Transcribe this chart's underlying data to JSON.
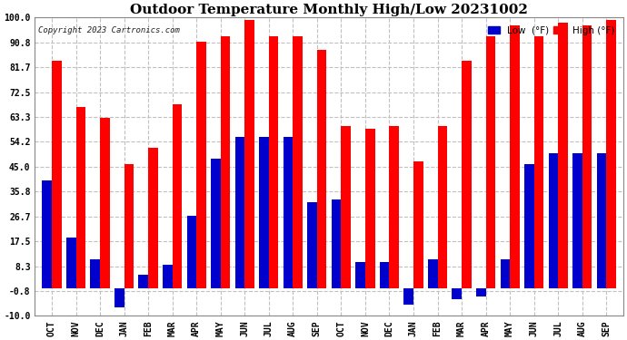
{
  "title": "Outdoor Temperature Monthly High/Low 20231002",
  "copyright": "Copyright 2023 Cartronics.com",
  "legend_low": "Low  (°F)",
  "legend_high": "High (°F)",
  "months": [
    "OCT",
    "NOV",
    "DEC",
    "JAN",
    "FEB",
    "MAR",
    "APR",
    "MAY",
    "JUN",
    "JUL",
    "AUG",
    "SEP",
    "OCT",
    "NOV",
    "DEC",
    "JAN",
    "FEB",
    "MAR",
    "APR",
    "MAY",
    "JUN",
    "JUL",
    "AUG",
    "SEP"
  ],
  "high_values": [
    84,
    67,
    63,
    46,
    52,
    68,
    91,
    93,
    99,
    93,
    93,
    88,
    60,
    59,
    60,
    47,
    60,
    84,
    93,
    97,
    93,
    98,
    97,
    99
  ],
  "low_values": [
    40,
    19,
    11,
    -7,
    5,
    9,
    27,
    48,
    56,
    56,
    56,
    32,
    33,
    10,
    10,
    -6,
    11,
    -4,
    -3,
    11,
    46,
    50,
    50,
    50
  ],
  "ylim": [
    -10.0,
    100.0
  ],
  "yticks": [
    -10.0,
    -0.8,
    8.3,
    17.5,
    26.7,
    35.8,
    45.0,
    54.2,
    63.3,
    72.5,
    81.7,
    90.8,
    100.0
  ],
  "high_color": "#ff0000",
  "low_color": "#0000cc",
  "bg_color": "#ffffff",
  "grid_color": "#c0c0c0",
  "title_fontsize": 11,
  "bar_width": 0.4,
  "figwidth": 6.9,
  "figheight": 3.75,
  "dpi": 100
}
